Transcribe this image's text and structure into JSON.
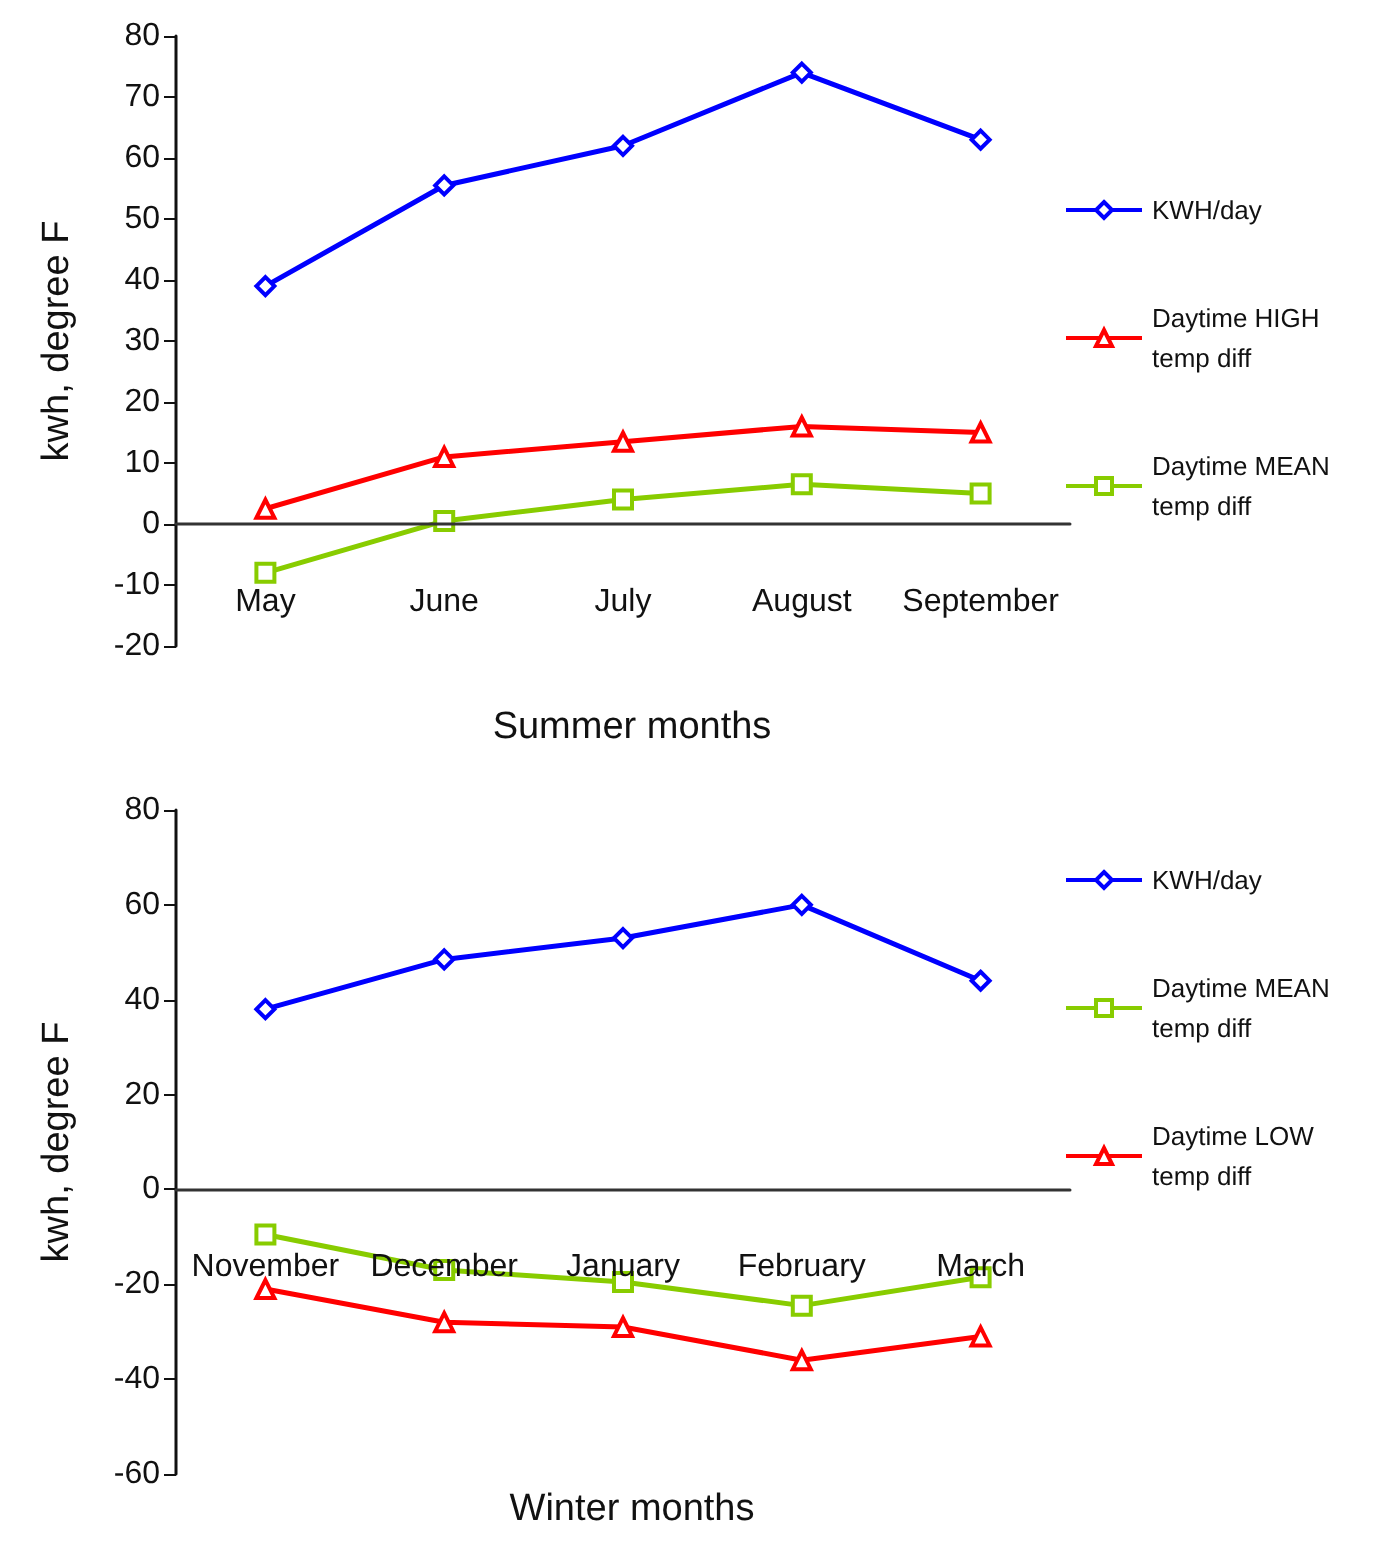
{
  "chart_data": [
    {
      "type": "line",
      "xlabel": "Summer months",
      "ylabel": "kwh, degree F",
      "categories": [
        "May",
        "June",
        "July",
        "August",
        "September"
      ],
      "ylim": [
        -20,
        80
      ],
      "yticks": [
        -20,
        -10,
        0,
        10,
        20,
        30,
        40,
        50,
        60,
        70,
        80
      ],
      "legend": "right",
      "series": [
        {
          "name": "KWH/day",
          "color": "#0000ff",
          "marker": "diamond",
          "values": [
            39,
            55.5,
            62,
            74,
            63
          ]
        },
        {
          "name": "Daytime HIGH temp diff",
          "color": "#ff0000",
          "marker": "triangle",
          "values": [
            2.5,
            11,
            13.5,
            16,
            15
          ]
        },
        {
          "name": "Daytime MEAN temp diff",
          "color": "#88cc00",
          "marker": "square",
          "values": [
            -8,
            0.5,
            4,
            6.5,
            5
          ]
        }
      ]
    },
    {
      "type": "line",
      "xlabel": "Winter months",
      "ylabel": "kwh, degree F",
      "categories": [
        "November",
        "December",
        "January",
        "February",
        "March"
      ],
      "ylim": [
        -60,
        80
      ],
      "yticks": [
        -60,
        -40,
        -20,
        0,
        20,
        40,
        60,
        80
      ],
      "legend": "right",
      "series": [
        {
          "name": "KWH/day",
          "color": "#0000ff",
          "marker": "diamond",
          "values": [
            38,
            48.5,
            53,
            60,
            44
          ]
        },
        {
          "name": "Daytime MEAN temp diff",
          "color": "#88cc00",
          "marker": "square",
          "values": [
            -9.5,
            -17,
            -19.5,
            -24.5,
            -18.5
          ]
        },
        {
          "name": "Daytime LOW temp diff",
          "color": "#ff0000",
          "marker": "triangle",
          "values": [
            -21,
            -28,
            -29,
            -36,
            -31
          ]
        }
      ]
    }
  ]
}
